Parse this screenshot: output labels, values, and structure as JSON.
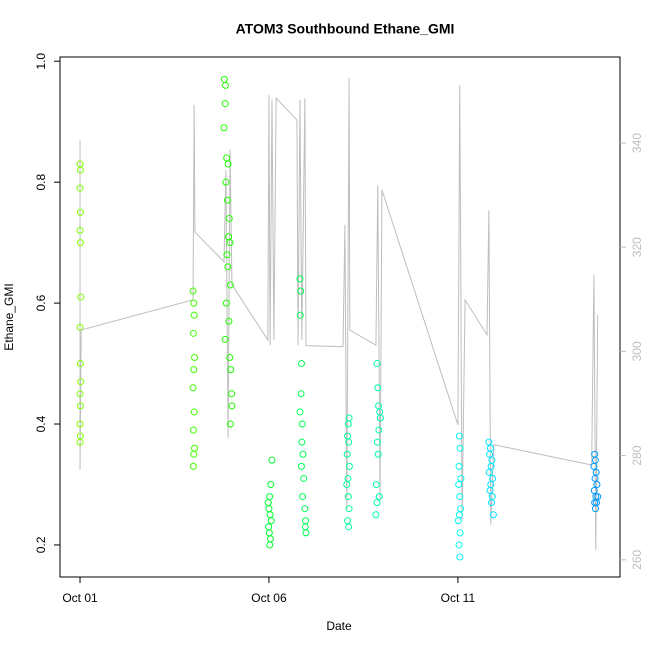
{
  "chart_data": {
    "type": "scatter",
    "title": "ATOM3 Southbound Ethane_GMI",
    "x_label": "Date",
    "y_label": "Ethane_GMI",
    "xlim": [
      -0.53,
      14.29
    ],
    "xticks": [
      {
        "value": 0,
        "label": "Oct 01"
      },
      {
        "value": 5,
        "label": "Oct 06"
      },
      {
        "value": 10,
        "label": "Oct 11"
      }
    ],
    "ylim": [
      0.147,
      1.007
    ],
    "yticks": [
      0.2,
      0.4,
      0.6,
      0.8,
      {
        "value": 1,
        "label": "1.0"
      }
    ],
    "y2lim": [
      256.7,
      356.5
    ],
    "y2ticks": [
      260,
      280,
      300,
      320,
      340
    ],
    "y2color": "#bebebe",
    "series": [
      {
        "color": "#80ff00",
        "x": [
          0,
          0.01,
          0,
          0.01,
          0,
          0.01,
          0.02,
          0,
          0.01,
          0.02,
          0,
          0.01,
          0,
          0.01,
          0
        ],
        "values": [
          0.83,
          0.82,
          0.79,
          0.75,
          0.72,
          0.7,
          0.61,
          0.56,
          0.5,
          0.47,
          0.45,
          0.43,
          0.4,
          0.38,
          0.37
        ]
      },
      {
        "color": "#40ff00",
        "x": [
          2.99,
          3.01,
          3.02,
          3.0,
          3.03,
          3.01,
          2.99,
          3.02,
          3.0,
          3.03,
          3.01,
          3.0
        ],
        "values": [
          0.62,
          0.6,
          0.58,
          0.55,
          0.51,
          0.49,
          0.46,
          0.42,
          0.39,
          0.36,
          0.35,
          0.33
        ]
      },
      {
        "color": "#20ff00",
        "x": [
          3.82,
          3.85,
          3.84,
          3.81,
          3.88,
          3.92,
          3.86,
          3.9,
          3.95,
          3.93,
          3.97,
          3.89,
          3.91,
          3.98,
          3.87,
          3.94,
          3.84,
          3.96,
          3.99,
          4.01,
          4.02,
          3.98
        ],
        "values": [
          0.97,
          0.96,
          0.93,
          0.89,
          0.84,
          0.83,
          0.8,
          0.77,
          0.74,
          0.71,
          0.7,
          0.68,
          0.66,
          0.63,
          0.6,
          0.57,
          0.54,
          0.51,
          0.49,
          0.45,
          0.43,
          0.4
        ]
      },
      {
        "color": "#00ff30",
        "x": [
          5.08,
          5.05,
          5.02,
          4.98,
          5.0,
          5.03,
          5.06,
          4.99,
          5.01,
          5.04,
          5.02
        ],
        "values": [
          0.34,
          0.3,
          0.28,
          0.27,
          0.26,
          0.25,
          0.24,
          0.23,
          0.22,
          0.21,
          0.2
        ]
      },
      {
        "color": "#00ff55",
        "x": [
          5.82,
          5.84,
          5.83,
          5.86,
          5.85,
          5.82,
          5.88,
          5.87,
          5.9,
          5.86,
          5.92,
          5.89,
          5.95,
          5.97,
          5.96,
          5.98
        ],
        "values": [
          0.64,
          0.62,
          0.58,
          0.5,
          0.45,
          0.42,
          0.4,
          0.37,
          0.35,
          0.33,
          0.31,
          0.28,
          0.26,
          0.24,
          0.23,
          0.22
        ]
      },
      {
        "color": "#00ff99",
        "x": [
          7.12,
          7.1,
          7.08,
          7.11,
          7.07,
          7.13,
          7.09,
          7.06,
          7.1,
          7.12,
          7.08,
          7.11
        ],
        "values": [
          0.41,
          0.4,
          0.38,
          0.37,
          0.35,
          0.33,
          0.31,
          0.3,
          0.28,
          0.26,
          0.24,
          0.23
        ]
      },
      {
        "color": "#00ffb0",
        "x": [
          7.86,
          7.88,
          7.9,
          7.93,
          7.95,
          7.91,
          7.87,
          7.89,
          7.84,
          7.92,
          7.86,
          7.83
        ],
        "values": [
          0.5,
          0.46,
          0.43,
          0.42,
          0.41,
          0.39,
          0.37,
          0.35,
          0.3,
          0.28,
          0.27,
          0.25
        ]
      },
      {
        "color": "#00ffee",
        "x": [
          10.04,
          10.06,
          10.03,
          10.08,
          10.02,
          10.05,
          10.07,
          10.04,
          10.01,
          10.06,
          10.03,
          10.05
        ],
        "values": [
          0.38,
          0.36,
          0.33,
          0.31,
          0.3,
          0.28,
          0.26,
          0.25,
          0.24,
          0.22,
          0.2,
          0.18
        ]
      },
      {
        "color": "#00e5ff",
        "x": [
          10.82,
          10.86,
          10.84,
          10.9,
          10.88,
          10.83,
          10.92,
          10.87,
          10.85,
          10.91,
          10.89,
          10.94
        ],
        "values": [
          0.37,
          0.36,
          0.35,
          0.34,
          0.33,
          0.32,
          0.31,
          0.3,
          0.29,
          0.28,
          0.27,
          0.25
        ]
      },
      {
        "color": "#0099ff",
        "x": [
          13.62,
          13.64,
          13.6,
          13.66,
          13.63,
          13.68,
          13.61,
          13.65,
          13.7,
          13.62,
          13.67,
          13.64
        ],
        "values": [
          0.35,
          0.34,
          0.33,
          0.32,
          0.31,
          0.3,
          0.29,
          0.28,
          0.28,
          0.27,
          0.27,
          0.26
        ]
      },
      {
        "type": "line",
        "axis": "y2",
        "color": "#bebebe",
        "x": [
          0,
          0,
          0.03,
          2.99,
          3.02,
          3.04,
          3.81,
          3.86,
          3.92,
          3.97,
          4.02,
          4.97,
          5.0,
          5.03,
          5.08,
          5.13,
          5.19,
          5.74,
          5.77,
          5.82,
          5.87,
          5.95,
          5.98,
          6.96,
          7.01,
          7.06,
          7.12,
          7.14,
          7.83,
          7.88,
          7.94,
          7.99,
          10.0,
          10.05,
          10.11,
          10.19,
          10.77,
          10.82,
          10.87,
          10.95,
          13.54,
          13.6,
          13.65,
          13.7
        ],
        "values": [
          340.6,
          277.3,
          304.1,
          309.9,
          347.3,
          322.9,
          317.2,
          334.8,
          283.4,
          338.7,
          312.8,
          302.2,
          349.2,
          301.2,
          348.3,
          302.2,
          348.6,
          344.4,
          301.2,
          348.3,
          302.2,
          348.6,
          301.1,
          300.9,
          324.3,
          269.6,
          352.5,
          304.1,
          301.2,
          331.9,
          271.5,
          331.0,
          285.9,
          351.1,
          267.7,
          309.9,
          303.2,
          327.1,
          266.7,
          282.1,
          278.2,
          314.7,
          261.9,
          307.0
        ]
      }
    ]
  }
}
